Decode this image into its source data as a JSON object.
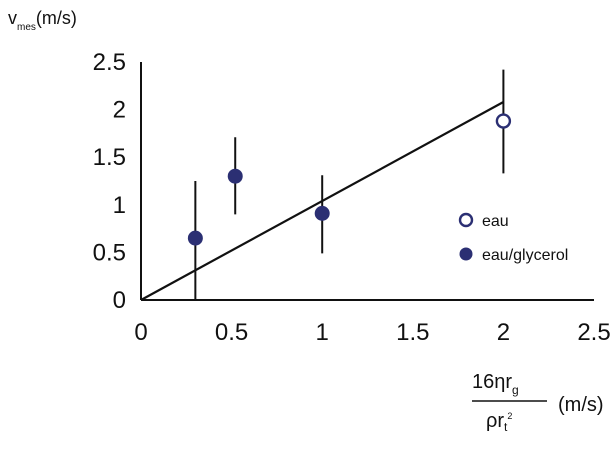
{
  "chart_data": {
    "type": "scatter",
    "title": "",
    "ylabel": {
      "base": "v",
      "subscript": "mes",
      "unit": "(m/s)"
    },
    "xlabel": {
      "numerator": {
        "text": "16ηr",
        "subscript": "g"
      },
      "denominator": {
        "text": "ρr",
        "subscript": "t",
        "superscript": "2"
      },
      "unit": "(m/s)"
    },
    "xlim": [
      0,
      2.5
    ],
    "ylim": [
      0,
      2.5
    ],
    "x_ticks": [
      "0",
      "0.5",
      "1",
      "1.5",
      "2",
      "2.5"
    ],
    "y_ticks": [
      "0",
      "0.5",
      "1",
      "1.5",
      "2",
      "2.5"
    ],
    "grid": false,
    "legend_position": "right",
    "series": [
      {
        "name": "eau",
        "marker": "open-circle",
        "color": "#2b2f73",
        "points": [
          {
            "x": 2.0,
            "y": 1.88,
            "yerr_low": 1.33,
            "yerr_high": 2.42
          }
        ]
      },
      {
        "name": "eau/glycerol",
        "marker": "filled-circle",
        "color": "#2b2f73",
        "points": [
          {
            "x": 0.3,
            "y": 0.65,
            "yerr_low": 0.0,
            "yerr_high": 1.25
          },
          {
            "x": 0.52,
            "y": 1.3,
            "yerr_low": 0.9,
            "yerr_high": 1.71
          },
          {
            "x": 1.0,
            "y": 0.91,
            "yerr_low": 0.49,
            "yerr_high": 1.31
          }
        ]
      }
    ],
    "fit_line": {
      "x": [
        0,
        2.0
      ],
      "y": [
        0,
        2.08
      ],
      "color": "#111111"
    }
  }
}
